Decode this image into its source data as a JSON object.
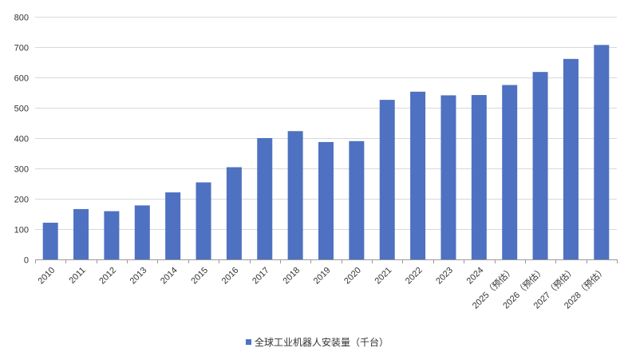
{
  "chart_data": {
    "type": "bar",
    "title": "",
    "xlabel": "",
    "ylabel": "",
    "ylim": [
      0,
      800
    ],
    "yticks": [
      0,
      100,
      200,
      300,
      400,
      500,
      600,
      700,
      800
    ],
    "grid": true,
    "legend_position": "bottom",
    "categories": [
      "2010",
      "2011",
      "2012",
      "2013",
      "2014",
      "2015",
      "2016",
      "2017",
      "2018",
      "2019",
      "2020",
      "2021",
      "2022",
      "2023",
      "2024",
      "2025（预估）",
      "2026（预估）",
      "2027（预估）",
      "2028（预估）"
    ],
    "series": [
      {
        "name": "全球工业机器人安装量（千台）",
        "color": "#4e71c1",
        "values": [
          121,
          166,
          159,
          178,
          221,
          254,
          304,
          400,
          423,
          387,
          390,
          526,
          553,
          541,
          542,
          575,
          618,
          661,
          707
        ]
      }
    ]
  }
}
